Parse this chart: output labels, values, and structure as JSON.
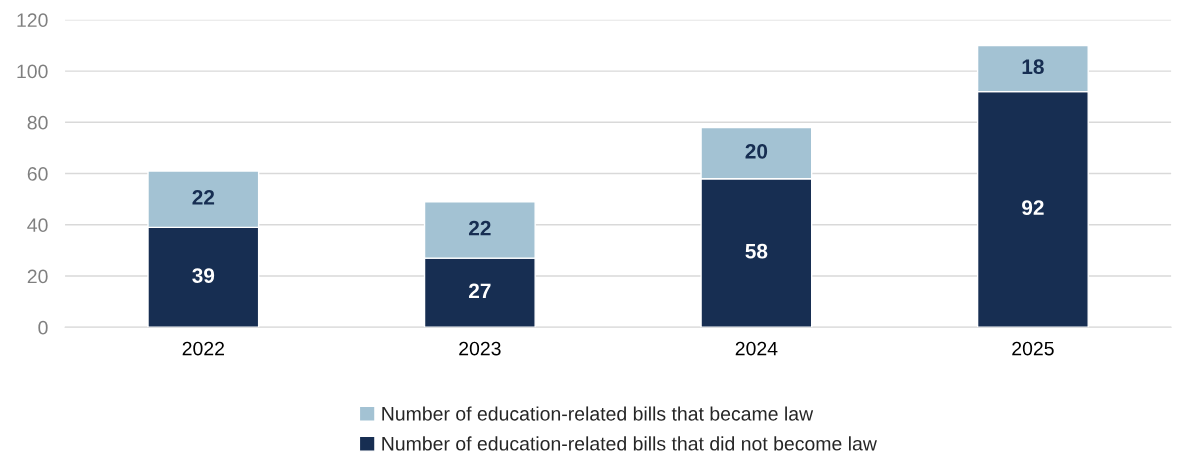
{
  "chart_data": {
    "type": "bar",
    "stacked": true,
    "categories": [
      "2022",
      "2023",
      "2024",
      "2025"
    ],
    "series": [
      {
        "name": "Number of education-related bills that did not become law",
        "color": "#172e52",
        "values": [
          39,
          27,
          58,
          92
        ]
      },
      {
        "name": "Number of education-related bills that became law",
        "color": "#a3c2d3",
        "values": [
          22,
          22,
          20,
          18
        ]
      }
    ],
    "ylim": [
      0,
      120
    ],
    "yticks": [
      0,
      20,
      40,
      60,
      80,
      100,
      120
    ],
    "grid": "y",
    "legend": "bottom",
    "data_labels": true
  }
}
